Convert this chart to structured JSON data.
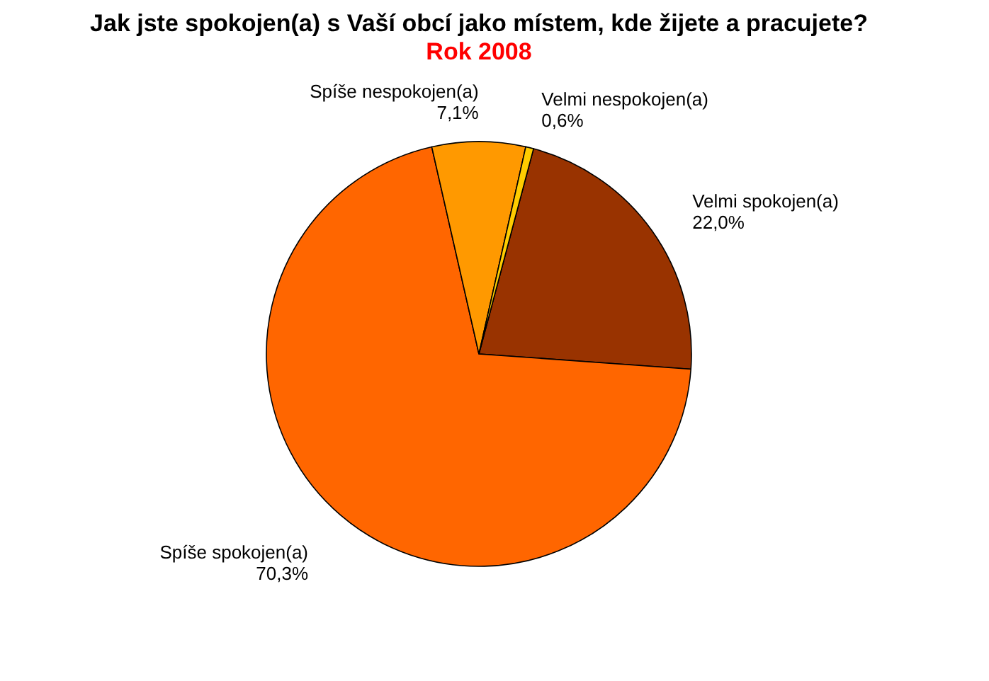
{
  "chart_data": {
    "type": "pie",
    "title": "Jak jste spokojen(a) s Vaší obcí jako místem, kde žijete a pracujete?",
    "subtitle": "Rok 2008",
    "categories": [
      "Velmi spokojen(a)",
      "Spíše spokojen(a)",
      "Spíše nespokojen(a)",
      "Velmi nespokojen(a)"
    ],
    "values": [
      22.0,
      70.3,
      7.1,
      0.6
    ],
    "value_labels": [
      "22,0%",
      "70,3%",
      "7,1%",
      "0,6%"
    ],
    "colors": [
      "#993300",
      "#ff6600",
      "#ff9900",
      "#ffcc00"
    ],
    "legend": false
  }
}
